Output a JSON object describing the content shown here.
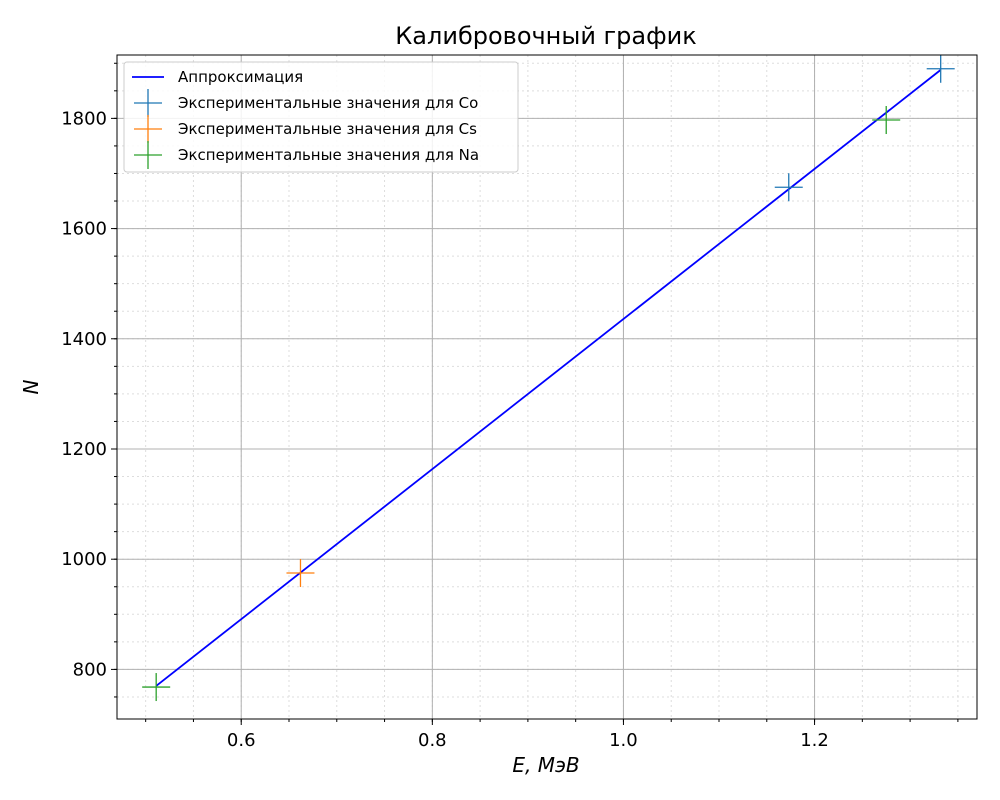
{
  "chart_data": {
    "type": "scatter",
    "title": "Калибровочный график",
    "xlabel": "E, МэВ",
    "ylabel": "N",
    "xlim": [
      0.47,
      1.37
    ],
    "ylim": [
      710,
      1915
    ],
    "x_ticks": [
      0.6,
      0.8,
      1.0,
      1.2
    ],
    "x_tick_labels": [
      "0.6",
      "0.8",
      "1.0",
      "1.2"
    ],
    "y_ticks": [
      800,
      1000,
      1200,
      1400,
      1600,
      1800
    ],
    "y_tick_labels": [
      "800",
      "1000",
      "1200",
      "1400",
      "1600",
      "1800"
    ],
    "grid": true,
    "legend_position": "upper-left",
    "fit_line": {
      "name": "Аппроксимация",
      "color": "#0000ff",
      "x": [
        0.511,
        1.332
      ],
      "y": [
        770,
        1888
      ]
    },
    "series": [
      {
        "name": "Экспериментальные значения для Co",
        "color": "#1f77b4",
        "x": [
          1.173,
          1.332
        ],
        "y": [
          1675,
          1890
        ]
      },
      {
        "name": "Экспериментальные значения для Cs",
        "color": "#ff7f0e",
        "x": [
          0.662
        ],
        "y": [
          975
        ]
      },
      {
        "name": "Экспериментальные значения для Na",
        "color": "#2ca02c",
        "x": [
          0.511,
          1.275
        ],
        "y": [
          768,
          1797
        ]
      }
    ]
  }
}
